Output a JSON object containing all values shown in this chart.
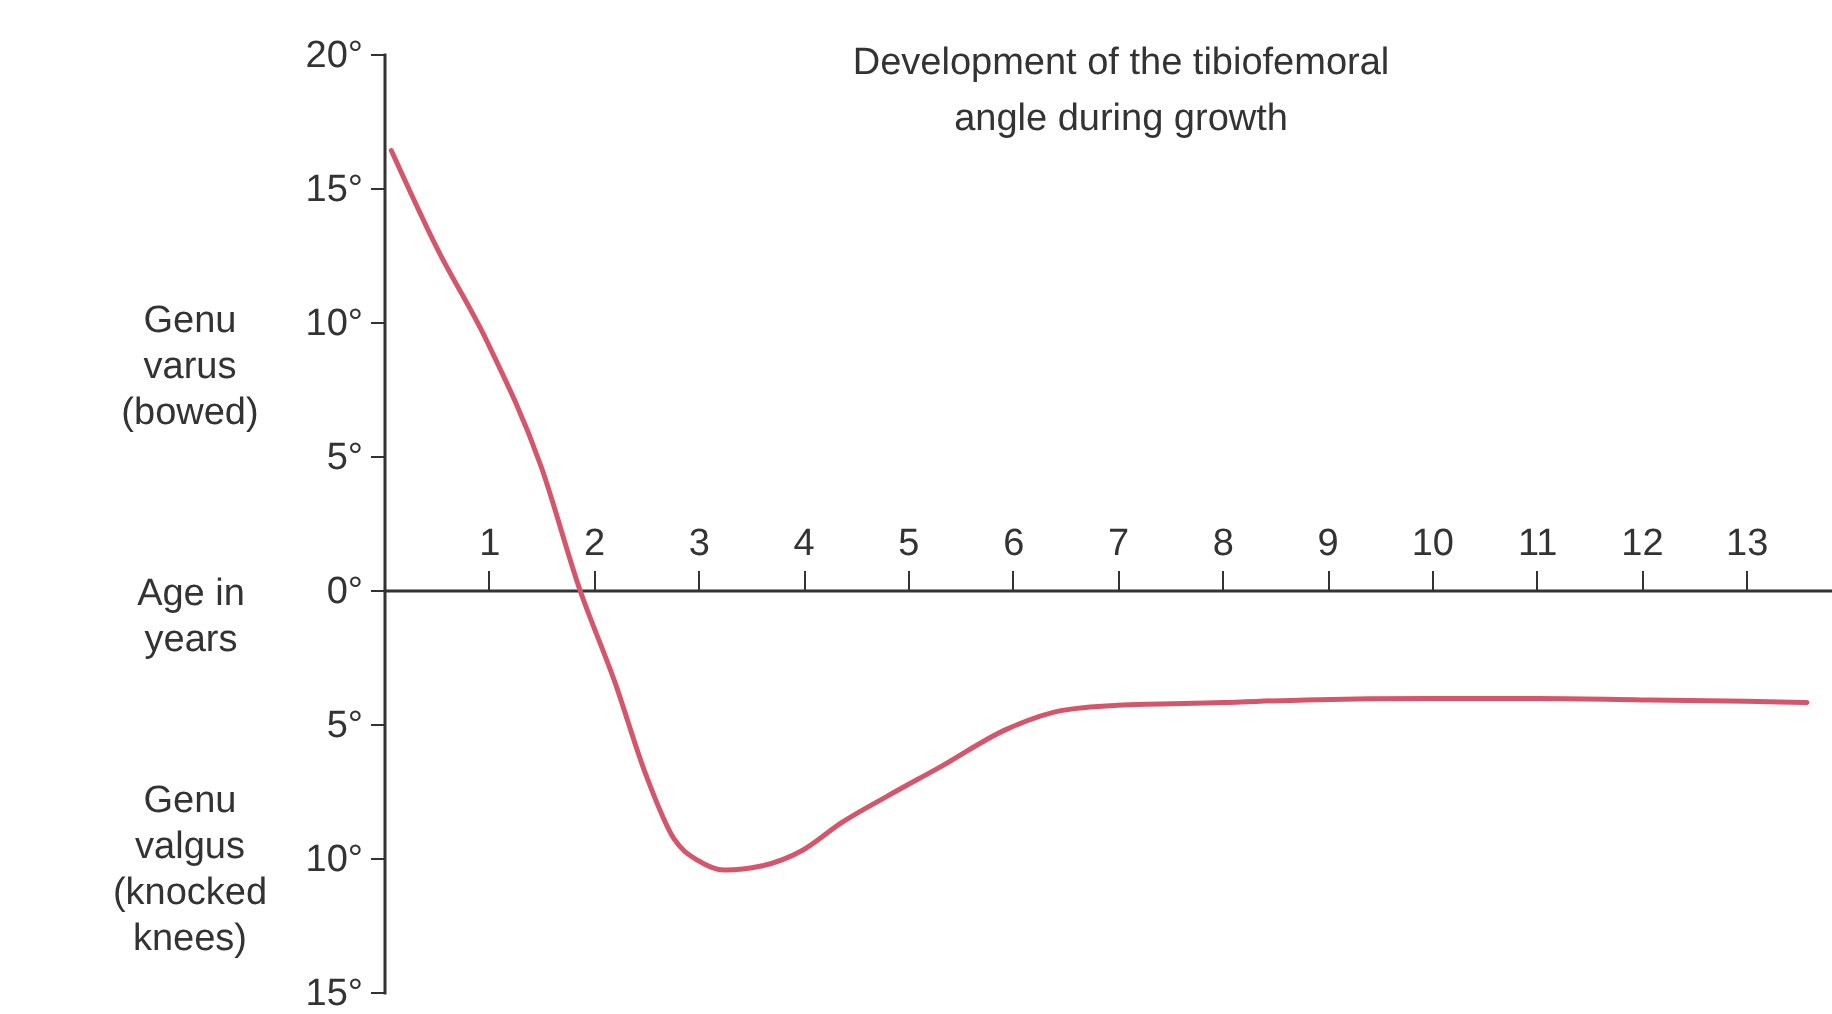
{
  "chart_data": {
    "type": "line",
    "title": "Development of the tibiofemoral angle during growth",
    "xlabel": "Age in years",
    "annotations": [
      "Genu varus (bowed)",
      "Genu valgus (knocked knees)"
    ],
    "x": [
      0.07,
      0.5,
      0.98,
      1.5,
      1.87,
      2.2,
      2.5,
      2.77,
      3.0,
      3.25,
      3.6,
      4.0,
      4.36,
      4.8,
      5.31,
      5.94,
      6.46,
      7.0,
      8.0,
      8.8,
      10.0,
      11.0,
      12.0,
      13.0,
      13.58
    ],
    "series": [
      {
        "color": "#d4566b",
        "values": [
          16.4,
          12.8,
          9.3,
          4.6,
          0,
          -3.4,
          -6.9,
          -9.3,
          -10.1,
          -10.45,
          -10.3,
          -9.7,
          -8.7,
          -7.7,
          -6.6,
          -5.2,
          -4.5,
          -4.3,
          -4.2,
          -4.1,
          -4.05,
          -4.05,
          -4.1,
          -4.15,
          -4.2
        ]
      }
    ],
    "xlim": [
      0,
      13.8
    ],
    "xticks": [
      1,
      2,
      3,
      4,
      5,
      6,
      7,
      8,
      9,
      10,
      11,
      12,
      13
    ],
    "ylim": [
      -15,
      20
    ],
    "yticks": [
      {
        "value": 20,
        "label": "20°"
      },
      {
        "value": 15,
        "label": "15°"
      },
      {
        "value": 10,
        "label": "10°"
      },
      {
        "value": 5,
        "label": "5°"
      },
      {
        "value": 0,
        "label": "0°"
      },
      {
        "value": -5,
        "label": "5°"
      },
      {
        "value": -10,
        "label": "10°"
      },
      {
        "value": -15,
        "label": "15°"
      }
    ],
    "grid": false,
    "marker": "none",
    "line_style": "solid"
  }
}
